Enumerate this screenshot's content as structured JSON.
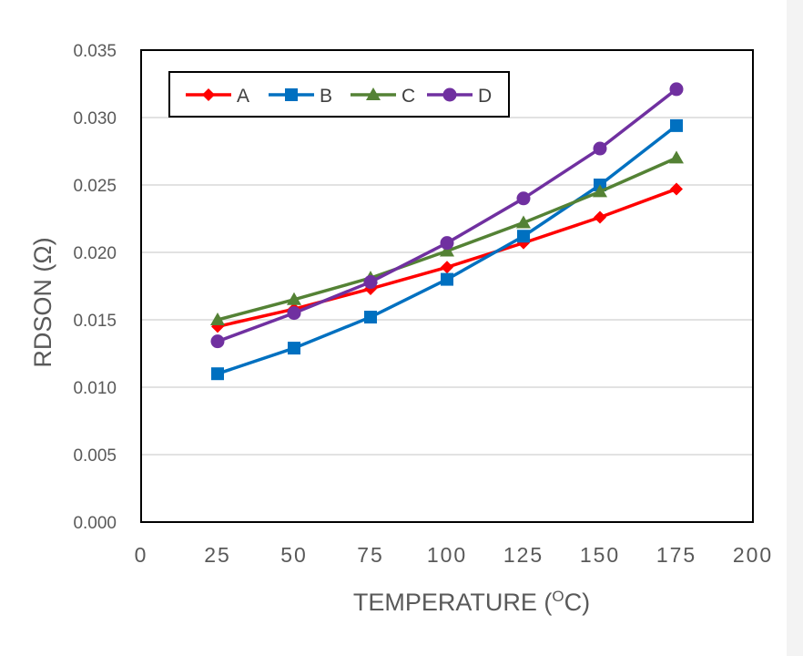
{
  "chart_data": {
    "type": "line",
    "xlabel": "TEMPERATURE (",
    "xlabel_sup": "O",
    "xlabel_suffix": "C)",
    "ylabel": "RDSON (Ω)",
    "xlim": [
      0,
      200
    ],
    "ylim": [
      0,
      0.035
    ],
    "x_ticks": [
      "0",
      "25",
      "50",
      "75",
      "100",
      "125",
      "150",
      "175",
      "200"
    ],
    "y_ticks": [
      "0.000",
      "0.005",
      "0.010",
      "0.015",
      "0.020",
      "0.025",
      "0.030",
      "0.035"
    ],
    "x": [
      25,
      50,
      75,
      100,
      125,
      150,
      175
    ],
    "grid": true,
    "legend_position": "top-left",
    "series": [
      {
        "name": "A",
        "color": "#ff0000",
        "marker": "diamond",
        "values": [
          0.0145,
          0.0158,
          0.0173,
          0.0189,
          0.0207,
          0.0226,
          0.0247
        ]
      },
      {
        "name": "B",
        "color": "#0070c0",
        "marker": "square",
        "values": [
          0.011,
          0.0129,
          0.0152,
          0.018,
          0.0212,
          0.025,
          0.0294
        ]
      },
      {
        "name": "C",
        "color": "#548235",
        "marker": "triangle",
        "values": [
          0.015,
          0.0165,
          0.0181,
          0.0201,
          0.0222,
          0.0245,
          0.027
        ]
      },
      {
        "name": "D",
        "color": "#7030a0",
        "marker": "circle",
        "values": [
          0.0134,
          0.0155,
          0.0178,
          0.0207,
          0.024,
          0.0277,
          0.0321
        ]
      }
    ]
  }
}
